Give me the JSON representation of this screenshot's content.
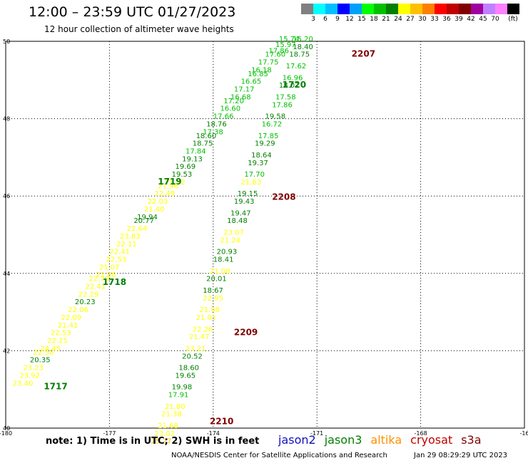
{
  "title": "12:00 – 23:59 UTC 01/27/2023",
  "subtitle": "12 hour collection of altimeter wave heights",
  "scale": {
    "unit": "(ft)",
    "colors": [
      "#808080",
      "#00ffff",
      "#00c0ff",
      "#0000ff",
      "#00a0ff",
      "#00ff00",
      "#00c000",
      "#008000",
      "#ffff00",
      "#ffc000",
      "#ff8000",
      "#ff0000",
      "#c00000",
      "#800000",
      "#a000a0",
      "#c080ff",
      "#ff80ff",
      "#000000"
    ],
    "labels": [
      "3",
      "6",
      "9",
      "12",
      "15",
      "18",
      "21",
      "24",
      "27",
      "30",
      "33",
      "36",
      "39",
      "42",
      "45",
      "70"
    ]
  },
  "axes": {
    "lon_ticks": [
      "-180",
      "-177",
      "-174",
      "-171",
      "-168",
      "-16"
    ],
    "lat_ticks": [
      "50",
      "48",
      "46",
      "44",
      "42",
      "40"
    ]
  },
  "note": "note: 1) Time is in UTC; 2) SWH is in feet",
  "legend": [
    {
      "name": "jason2",
      "color": "#1010c0"
    },
    {
      "name": "jason3",
      "color": "#008000"
    },
    {
      "name": "altika",
      "color": "#ff9000"
    },
    {
      "name": "cryosat",
      "color": "#c00000"
    },
    {
      "name": "s3a",
      "color": "#800000"
    }
  ],
  "credit": "NOAA/NESDIS Center for Satellite Applications and Research",
  "timestamp": "Jan 29 08:29:29 UTC 2023",
  "chart_data": {
    "type": "map",
    "lon_range": [
      -180,
      -165
    ],
    "lat_range": [
      40,
      50
    ],
    "grid": true,
    "pass_labels": [
      {
        "text": "1717",
        "lon": -178.9,
        "lat": 41.0,
        "color": "#008000"
      },
      {
        "text": "1718",
        "lon": -177.2,
        "lat": 43.7,
        "color": "#008000"
      },
      {
        "text": "1719",
        "lon": -175.6,
        "lat": 46.3,
        "color": "#008000"
      },
      {
        "text": "1720",
        "lon": -172.0,
        "lat": 48.8,
        "color": "#008000"
      },
      {
        "text": "2207",
        "lon": -170.0,
        "lat": 49.6,
        "color": "#800000"
      },
      {
        "text": "2208",
        "lon": -172.3,
        "lat": 45.9,
        "color": "#800000"
      },
      {
        "text": "2209",
        "lon": -173.4,
        "lat": 42.4,
        "color": "#800000"
      },
      {
        "text": "2210",
        "lon": -174.1,
        "lat": 40.1,
        "color": "#800000"
      }
    ],
    "points": [
      {
        "v": "23.40",
        "lon": -179.8,
        "lat": 41.1,
        "c": "#ffff00"
      },
      {
        "v": "23.92",
        "lon": -179.6,
        "lat": 41.3,
        "c": "#ffff00"
      },
      {
        "v": "23.23",
        "lon": -179.5,
        "lat": 41.5,
        "c": "#ffff00"
      },
      {
        "v": "20.35",
        "lon": -179.3,
        "lat": 41.7,
        "c": "#008000"
      },
      {
        "v": "22.56",
        "lon": -179.2,
        "lat": 41.9,
        "c": "#ffff00"
      },
      {
        "v": "24.45",
        "lon": -179.0,
        "lat": 42.0,
        "c": "#ffff00"
      },
      {
        "v": "22.25",
        "lon": -178.8,
        "lat": 42.2,
        "c": "#ffff00"
      },
      {
        "v": "22.53",
        "lon": -178.7,
        "lat": 42.4,
        "c": "#ffff00"
      },
      {
        "v": "21.41",
        "lon": -178.5,
        "lat": 42.6,
        "c": "#ffff00"
      },
      {
        "v": "22.09",
        "lon": -178.4,
        "lat": 42.8,
        "c": "#ffff00"
      },
      {
        "v": "22.06",
        "lon": -178.2,
        "lat": 43.0,
        "c": "#ffff00"
      },
      {
        "v": "20.23",
        "lon": -178.0,
        "lat": 43.2,
        "c": "#008000"
      },
      {
        "v": "22.29",
        "lon": -177.9,
        "lat": 43.4,
        "c": "#ffff00"
      },
      {
        "v": "22.41",
        "lon": -177.7,
        "lat": 43.6,
        "c": "#ffff00"
      },
      {
        "v": "22.78",
        "lon": -177.6,
        "lat": 43.8,
        "c": "#ffff00"
      },
      {
        "v": "21.86",
        "lon": -177.4,
        "lat": 43.9,
        "c": "#ffff00"
      },
      {
        "v": "21.07",
        "lon": -177.3,
        "lat": 44.1,
        "c": "#ffff00"
      },
      {
        "v": "22.53",
        "lon": -177.1,
        "lat": 44.3,
        "c": "#ffff00"
      },
      {
        "v": "22.41",
        "lon": -177.0,
        "lat": 44.5,
        "c": "#ffff00"
      },
      {
        "v": "22.11",
        "lon": -176.8,
        "lat": 44.7,
        "c": "#ffff00"
      },
      {
        "v": "23.83",
        "lon": -176.7,
        "lat": 44.9,
        "c": "#ffff00"
      },
      {
        "v": "22.64",
        "lon": -176.5,
        "lat": 45.1,
        "c": "#ffff00"
      },
      {
        "v": "20.77",
        "lon": -176.3,
        "lat": 45.3,
        "c": "#008000"
      },
      {
        "v": "19.94",
        "lon": -176.2,
        "lat": 45.4,
        "c": "#008000"
      },
      {
        "v": "21.40",
        "lon": -176.0,
        "lat": 45.6,
        "c": "#ffff00"
      },
      {
        "v": "22.03",
        "lon": -175.9,
        "lat": 45.8,
        "c": "#ffff00"
      },
      {
        "v": "22.49",
        "lon": -175.7,
        "lat": 46.0,
        "c": "#ffff00"
      },
      {
        "v": "21.96",
        "lon": -175.6,
        "lat": 46.2,
        "c": "#ffff00"
      },
      {
        "v": "21.12",
        "lon": -175.4,
        "lat": 46.3,
        "c": "#ffff00"
      },
      {
        "v": "19.53",
        "lon": -175.2,
        "lat": 46.5,
        "c": "#008000"
      },
      {
        "v": "19.69",
        "lon": -175.1,
        "lat": 46.7,
        "c": "#008000"
      },
      {
        "v": "19.13",
        "lon": -174.9,
        "lat": 46.9,
        "c": "#008000"
      },
      {
        "v": "17.84",
        "lon": -174.8,
        "lat": 47.1,
        "c": "#00c000"
      },
      {
        "v": "18.75",
        "lon": -174.6,
        "lat": 47.3,
        "c": "#008000"
      },
      {
        "v": "18.60",
        "lon": -174.5,
        "lat": 47.5,
        "c": "#008000"
      },
      {
        "v": "17.38",
        "lon": -174.3,
        "lat": 47.6,
        "c": "#00c000"
      },
      {
        "v": "18.76",
        "lon": -174.2,
        "lat": 47.8,
        "c": "#008000"
      },
      {
        "v": "17.66",
        "lon": -174.0,
        "lat": 48.0,
        "c": "#00c000"
      },
      {
        "v": "16.60",
        "lon": -173.8,
        "lat": 48.2,
        "c": "#00c000"
      },
      {
        "v": "17.20",
        "lon": -173.7,
        "lat": 48.4,
        "c": "#00c000"
      },
      {
        "v": "16.68",
        "lon": -173.5,
        "lat": 48.5,
        "c": "#00c000"
      },
      {
        "v": "17.17",
        "lon": -173.4,
        "lat": 48.7,
        "c": "#00c000"
      },
      {
        "v": "16.65",
        "lon": -173.2,
        "lat": 48.9,
        "c": "#00c000"
      },
      {
        "v": "16.85",
        "lon": -173.0,
        "lat": 49.1,
        "c": "#00c000"
      },
      {
        "v": "16.18",
        "lon": -172.9,
        "lat": 49.2,
        "c": "#00c000"
      },
      {
        "v": "17.75",
        "lon": -172.7,
        "lat": 49.4,
        "c": "#00c000"
      },
      {
        "v": "17.60",
        "lon": -172.5,
        "lat": 49.6,
        "c": "#00c000"
      },
      {
        "v": "17.86",
        "lon": -172.4,
        "lat": 49.7,
        "c": "#00c000"
      },
      {
        "v": "15.97",
        "lon": -172.2,
        "lat": 49.85,
        "c": "#00c000"
      },
      {
        "v": "15.74",
        "lon": -172.1,
        "lat": 50.0,
        "c": "#00c000"
      },
      {
        "v": "15.20",
        "lon": -171.7,
        "lat": 50.0,
        "c": "#00c000"
      },
      {
        "v": "18.40",
        "lon": -171.7,
        "lat": 49.8,
        "c": "#008000"
      },
      {
        "v": "18.75",
        "lon": -171.8,
        "lat": 49.6,
        "c": "#008000"
      },
      {
        "v": "17.62",
        "lon": -171.9,
        "lat": 49.3,
        "c": "#00c000"
      },
      {
        "v": "16.96",
        "lon": -172.0,
        "lat": 49.0,
        "c": "#00c000"
      },
      {
        "v": "18.07",
        "lon": -172.1,
        "lat": 48.8,
        "c": "#008000"
      },
      {
        "v": "17.58",
        "lon": -172.2,
        "lat": 48.5,
        "c": "#00c000"
      },
      {
        "v": "17.86",
        "lon": -172.3,
        "lat": 48.3,
        "c": "#00c000"
      },
      {
        "v": "19.58",
        "lon": -172.5,
        "lat": 48.0,
        "c": "#008000"
      },
      {
        "v": "16.72",
        "lon": -172.6,
        "lat": 47.8,
        "c": "#00c000"
      },
      {
        "v": "17.85",
        "lon": -172.7,
        "lat": 47.5,
        "c": "#00c000"
      },
      {
        "v": "19.29",
        "lon": -172.8,
        "lat": 47.3,
        "c": "#008000"
      },
      {
        "v": "18.64",
        "lon": -172.9,
        "lat": 47.0,
        "c": "#008000"
      },
      {
        "v": "19.37",
        "lon": -173.0,
        "lat": 46.8,
        "c": "#008000"
      },
      {
        "v": "17.70",
        "lon": -173.1,
        "lat": 46.5,
        "c": "#00c000"
      },
      {
        "v": "21.63",
        "lon": -173.2,
        "lat": 46.3,
        "c": "#ffff00"
      },
      {
        "v": "19.15",
        "lon": -173.3,
        "lat": 46.0,
        "c": "#008000"
      },
      {
        "v": "19.43",
        "lon": -173.4,
        "lat": 45.8,
        "c": "#008000"
      },
      {
        "v": "19.47",
        "lon": -173.5,
        "lat": 45.5,
        "c": "#008000"
      },
      {
        "v": "18.48",
        "lon": -173.6,
        "lat": 45.3,
        "c": "#008000"
      },
      {
        "v": "23.07",
        "lon": -173.7,
        "lat": 45.0,
        "c": "#ffff00"
      },
      {
        "v": "21.24",
        "lon": -173.8,
        "lat": 44.8,
        "c": "#ffff00"
      },
      {
        "v": "20.93",
        "lon": -173.9,
        "lat": 44.5,
        "c": "#008000"
      },
      {
        "v": "18.41",
        "lon": -174.0,
        "lat": 44.3,
        "c": "#008000"
      },
      {
        "v": "21.08",
        "lon": -174.1,
        "lat": 44.0,
        "c": "#ffff00"
      },
      {
        "v": "20.01",
        "lon": -174.2,
        "lat": 43.8,
        "c": "#008000"
      },
      {
        "v": "18.67",
        "lon": -174.3,
        "lat": 43.5,
        "c": "#008000"
      },
      {
        "v": "22.95",
        "lon": -174.3,
        "lat": 43.3,
        "c": "#ffff00"
      },
      {
        "v": "21.98",
        "lon": -174.4,
        "lat": 43.0,
        "c": "#ffff00"
      },
      {
        "v": "21.01",
        "lon": -174.5,
        "lat": 42.8,
        "c": "#ffff00"
      },
      {
        "v": "22.26",
        "lon": -174.6,
        "lat": 42.5,
        "c": "#ffff00"
      },
      {
        "v": "21.47",
        "lon": -174.7,
        "lat": 42.3,
        "c": "#ffff00"
      },
      {
        "v": "23.21",
        "lon": -174.8,
        "lat": 42.0,
        "c": "#ffff00"
      },
      {
        "v": "20.52",
        "lon": -174.9,
        "lat": 41.8,
        "c": "#008000"
      },
      {
        "v": "18.60",
        "lon": -175.0,
        "lat": 41.5,
        "c": "#008000"
      },
      {
        "v": "19.65",
        "lon": -175.1,
        "lat": 41.3,
        "c": "#008000"
      },
      {
        "v": "19.98",
        "lon": -175.2,
        "lat": 41.0,
        "c": "#008000"
      },
      {
        "v": "17.91",
        "lon": -175.3,
        "lat": 40.8,
        "c": "#00c000"
      },
      {
        "v": "21.80",
        "lon": -175.4,
        "lat": 40.5,
        "c": "#ffff00"
      },
      {
        "v": "21.38",
        "lon": -175.5,
        "lat": 40.3,
        "c": "#ffff00"
      },
      {
        "v": "21.68",
        "lon": -175.6,
        "lat": 40.0,
        "c": "#ffff00"
      },
      {
        "v": "23.02",
        "lon": -175.7,
        "lat": 39.8,
        "c": "#ffff00"
      },
      {
        "v": "25.27",
        "lon": -175.8,
        "lat": 39.6,
        "c": "#ffc000"
      }
    ]
  }
}
